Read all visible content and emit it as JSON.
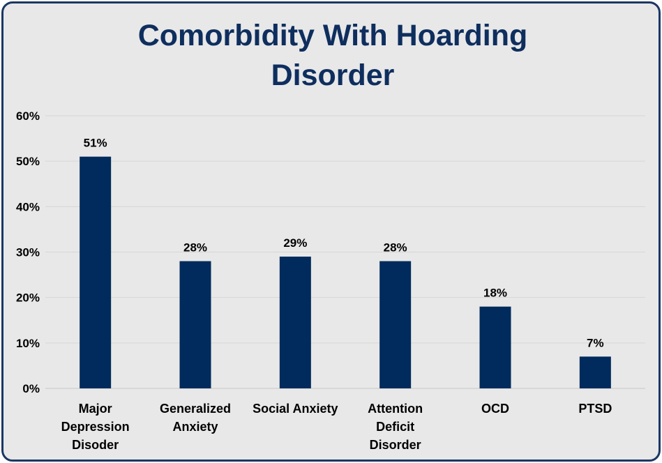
{
  "chart_data": {
    "type": "bar",
    "title_lines": [
      "Comorbidity With Hoarding",
      "Disorder"
    ],
    "categories": [
      [
        "Major",
        "Depression",
        "Disoder"
      ],
      [
        "Generalized",
        "Anxiety"
      ],
      [
        "Social Anxiety"
      ],
      [
        "Attention",
        "Deficit",
        "Disorder"
      ],
      [
        "OCD"
      ],
      [
        "PTSD"
      ]
    ],
    "values": [
      51,
      28,
      29,
      28,
      18,
      7
    ],
    "data_labels": [
      "51%",
      "28%",
      "29%",
      "28%",
      "18%",
      "7%"
    ],
    "y_ticks": [
      "0%",
      "10%",
      "20%",
      "30%",
      "40%",
      "50%",
      "60%"
    ],
    "ylim": [
      0,
      60
    ],
    "grid": true,
    "legend": "none",
    "colors": {
      "bar": "#002b5c",
      "title": "#0e2e5e",
      "gridline": "#d6d6d6",
      "background": "#e8e8e8",
      "border": "#1b3764"
    }
  }
}
